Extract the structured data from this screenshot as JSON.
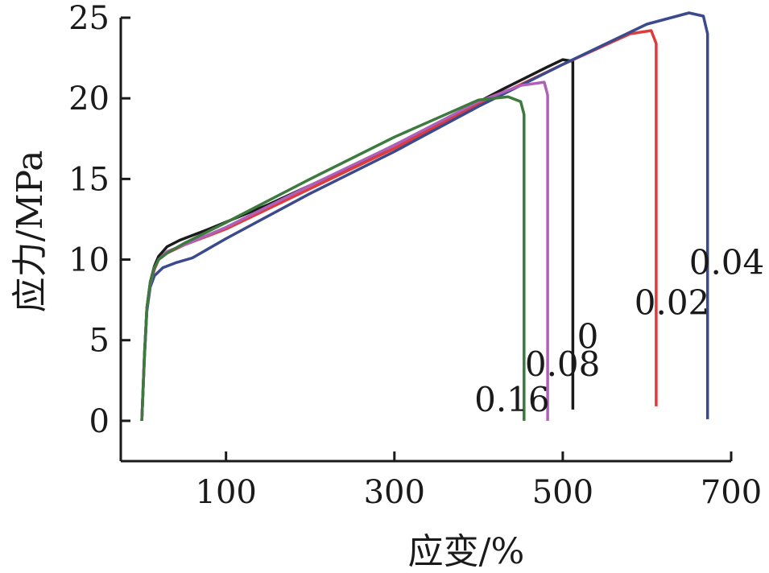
{
  "chart_data": {
    "type": "line",
    "xlabel": "应变/%",
    "ylabel": "应力/MPa",
    "xlim": [
      -25,
      700
    ],
    "ylim": [
      -2.5,
      25
    ],
    "x_ticks": [
      100,
      300,
      500,
      700
    ],
    "y_ticks": [
      0,
      5,
      10,
      15,
      20,
      25
    ],
    "grid": false,
    "series": [
      {
        "name": "0",
        "color": "#1a1a1a",
        "points": [
          [
            0,
            0
          ],
          [
            3,
            4
          ],
          [
            6,
            7
          ],
          [
            10,
            8.6
          ],
          [
            15,
            9.6
          ],
          [
            20,
            10.2
          ],
          [
            30,
            10.8
          ],
          [
            45,
            11.2
          ],
          [
            80,
            11.9
          ],
          [
            150,
            13.4
          ],
          [
            250,
            15.8
          ],
          [
            350,
            18.4
          ],
          [
            430,
            20.6
          ],
          [
            480,
            21.9
          ],
          [
            500,
            22.4
          ],
          [
            512,
            22.3
          ],
          [
            512,
            0.7
          ]
        ]
      },
      {
        "name": "0.02",
        "color": "#e03a3a",
        "points": [
          [
            0,
            0
          ],
          [
            3,
            4
          ],
          [
            6,
            7
          ],
          [
            10,
            8.5
          ],
          [
            15,
            9.4
          ],
          [
            20,
            10.0
          ],
          [
            30,
            10.4
          ],
          [
            50,
            10.9
          ],
          [
            100,
            11.9
          ],
          [
            200,
            14.4
          ],
          [
            300,
            16.9
          ],
          [
            400,
            19.6
          ],
          [
            500,
            22.1
          ],
          [
            580,
            24.0
          ],
          [
            605,
            24.2
          ],
          [
            611,
            23.4
          ],
          [
            611,
            0.9
          ]
        ]
      },
      {
        "name": "0.04",
        "color": "#3a4a8c",
        "points": [
          [
            0,
            0
          ],
          [
            3,
            3.8
          ],
          [
            6,
            6.8
          ],
          [
            10,
            8.3
          ],
          [
            15,
            9.0
          ],
          [
            25,
            9.5
          ],
          [
            40,
            9.8
          ],
          [
            60,
            10.1
          ],
          [
            100,
            11.3
          ],
          [
            200,
            14.1
          ],
          [
            300,
            16.7
          ],
          [
            400,
            19.5
          ],
          [
            500,
            22.1
          ],
          [
            600,
            24.6
          ],
          [
            650,
            25.3
          ],
          [
            667,
            25.1
          ],
          [
            672,
            24.0
          ],
          [
            672,
            0.1
          ]
        ]
      },
      {
        "name": "0.08",
        "color": "#b060b8",
        "points": [
          [
            0,
            0
          ],
          [
            3,
            4
          ],
          [
            6,
            7
          ],
          [
            10,
            8.5
          ],
          [
            15,
            9.5
          ],
          [
            20,
            10.0
          ],
          [
            30,
            10.5
          ],
          [
            50,
            10.9
          ],
          [
            100,
            12.0
          ],
          [
            200,
            14.6
          ],
          [
            300,
            17.1
          ],
          [
            400,
            19.8
          ],
          [
            450,
            20.8
          ],
          [
            478,
            21.0
          ],
          [
            482,
            20.2
          ],
          [
            482,
            0
          ]
        ]
      },
      {
        "name": "0.16",
        "color": "#3d7a3d",
        "points": [
          [
            0,
            0
          ],
          [
            3,
            4
          ],
          [
            6,
            7
          ],
          [
            10,
            8.6
          ],
          [
            15,
            9.5
          ],
          [
            20,
            10.0
          ],
          [
            30,
            10.4
          ],
          [
            50,
            11.0
          ],
          [
            100,
            12.3
          ],
          [
            200,
            15.0
          ],
          [
            300,
            17.6
          ],
          [
            400,
            19.9
          ],
          [
            435,
            20.1
          ],
          [
            450,
            19.8
          ],
          [
            454,
            19.0
          ],
          [
            454,
            0
          ]
        ]
      }
    ],
    "series_labels": [
      {
        "text": "0",
        "x": 517,
        "y": 4.5
      },
      {
        "text": "0.02",
        "x": 585,
        "y": 6.6
      },
      {
        "text": "0.04",
        "x": 650,
        "y": 9.1
      },
      {
        "text": "0.08",
        "x": 455,
        "y": 2.8
      },
      {
        "text": "0.16",
        "x": 395,
        "y": 0.6
      }
    ]
  }
}
